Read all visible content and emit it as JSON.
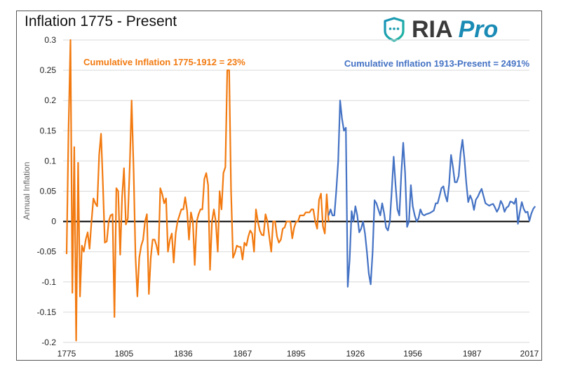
{
  "chart_data": {
    "type": "line",
    "title": "Inflation 1775 - Present",
    "xlabel": "",
    "ylabel": "Annual Inflation",
    "ylim": [
      -0.2,
      0.3
    ],
    "xlim": [
      1775,
      2017
    ],
    "yticks": [
      "0.3",
      "0.25",
      "0.2",
      "0.15",
      "0.1",
      "0.05",
      "0",
      "-0.05",
      "-0.1",
      "-0.15",
      "-0.2"
    ],
    "ytick_values": [
      0.3,
      0.25,
      0.2,
      0.15,
      0.1,
      0.05,
      0,
      -0.05,
      -0.1,
      -0.15,
      -0.2
    ],
    "xticks": [
      "1775",
      "1805",
      "1836",
      "1867",
      "1895",
      "1926",
      "1956",
      "1987",
      "2017"
    ],
    "xtick_values": [
      1775,
      1805,
      1836,
      1867,
      1895,
      1926,
      1956,
      1987,
      2017
    ],
    "grid": true,
    "legend": "none",
    "annotations": [
      {
        "text": "Cumulative Inflation 1775-1912 = 23%",
        "color": "#f27a10",
        "position": "top-left"
      },
      {
        "text": "Cumulative Inflation 1913-Present = 2491%",
        "color": "#4472c4",
        "position": "top-right"
      }
    ],
    "series": [
      {
        "name": "1775-1912",
        "color": "#f27a10",
        "start_year": 1775,
        "values": [
          -0.054,
          0.15,
          0.3,
          -0.118,
          0.123,
          -0.197,
          0.097,
          -0.124,
          -0.04,
          -0.05,
          -0.03,
          -0.018,
          -0.045,
          0.0,
          0.038,
          0.03,
          0.025,
          0.11,
          0.145,
          0.06,
          -0.035,
          -0.033,
          0.0,
          0.01,
          0.012,
          -0.158,
          0.055,
          0.05,
          -0.055,
          0.04,
          0.088,
          -0.005,
          0.005,
          0.09,
          0.2,
          0.087,
          -0.057,
          -0.124,
          -0.06,
          -0.04,
          -0.03,
          0.0,
          0.012,
          -0.12,
          -0.06,
          -0.03,
          -0.03,
          -0.04,
          -0.055,
          0.055,
          0.045,
          0.03,
          0.038,
          -0.05,
          -0.03,
          -0.02,
          -0.068,
          -0.02,
          0.0,
          0.01,
          0.02,
          0.02,
          0.04,
          0.018,
          -0.03,
          0.015,
          0.0,
          -0.072,
          0.0,
          0.012,
          0.02,
          0.02,
          0.07,
          0.08,
          0.06,
          -0.08,
          0.0,
          0.02,
          0.0,
          -0.05,
          0.05,
          0.02,
          0.08,
          0.09,
          0.25,
          0.25,
          0.05,
          -0.06,
          -0.052,
          -0.04,
          -0.042,
          -0.042,
          -0.063,
          -0.035,
          -0.04,
          -0.025,
          -0.015,
          -0.02,
          -0.05,
          0.02,
          0.0,
          -0.015,
          -0.022,
          -0.023,
          0.012,
          0.0,
          -0.026,
          -0.05,
          0.0,
          0.0,
          -0.025,
          -0.035,
          -0.03,
          -0.012,
          -0.01,
          0.0,
          0.0,
          0.0,
          -0.028,
          -0.01,
          0.0,
          0.0,
          0.01,
          0.01,
          0.01,
          0.015,
          0.015,
          0.015,
          0.02,
          0.02,
          0.0,
          -0.012,
          0.036,
          0.046,
          -0.008,
          -0.02,
          0.045,
          0.0
        ],
        "_note": "sequential annual values from start_year"
      },
      {
        "name": "1913-Present",
        "color": "#4472c4",
        "start_year": 1912,
        "values": [
          0.01,
          0.02,
          0.01,
          0.01,
          0.05,
          0.1,
          0.2,
          0.17,
          0.15,
          0.155,
          -0.108,
          -0.063,
          0.017,
          0.0,
          0.025,
          0.01,
          -0.018,
          -0.012,
          0.0,
          -0.02,
          -0.05,
          -0.086,
          -0.104,
          -0.05,
          0.035,
          0.03,
          0.02,
          0.01,
          0.03,
          0.014,
          -0.01,
          -0.015,
          0.0,
          0.05,
          0.107,
          0.06,
          0.02,
          0.01,
          0.08,
          0.13,
          0.08,
          -0.009,
          0.0,
          0.06,
          0.025,
          0.01,
          0.0,
          0.005,
          0.02,
          0.012,
          0.01,
          0.012,
          0.013,
          0.014,
          0.016,
          0.018,
          0.03,
          0.03,
          0.042,
          0.055,
          0.058,
          0.043,
          0.033,
          0.062,
          0.11,
          0.09,
          0.065,
          0.065,
          0.075,
          0.113,
          0.135,
          0.103,
          0.063,
          0.032,
          0.043,
          0.035,
          0.019,
          0.036,
          0.041,
          0.048,
          0.054,
          0.042,
          0.03,
          0.028,
          0.026,
          0.028,
          0.029,
          0.023,
          0.016,
          0.022,
          0.034,
          0.028,
          0.016,
          0.023,
          0.025,
          0.033,
          0.032,
          0.029,
          0.038,
          -0.004,
          0.016,
          0.032,
          0.021,
          0.015,
          0.016,
          0.001,
          0.013,
          0.021,
          0.025
        ],
        "_note": "sequential annual values from start_year"
      }
    ]
  },
  "logo": {
    "text_main": "RIA",
    "text_accent": "Pro",
    "shield_color": "#1aa6a0",
    "main_color": "#3a3a3a",
    "accent_color": "#1a8bb5"
  }
}
